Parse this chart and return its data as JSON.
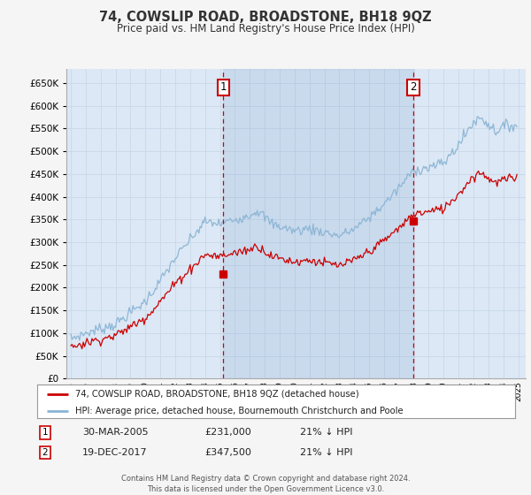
{
  "title": "74, COWSLIP ROAD, BROADSTONE, BH18 9QZ",
  "subtitle": "Price paid vs. HM Land Registry's House Price Index (HPI)",
  "legend_line1": "74, COWSLIP ROAD, BROADSTONE, BH18 9QZ (detached house)",
  "legend_line2": "HPI: Average price, detached house, Bournemouth Christchurch and Poole",
  "sale1_date": "30-MAR-2005",
  "sale1_price": "£231,000",
  "sale1_hpi": "21% ↓ HPI",
  "sale1_year": 2005.22,
  "sale1_val": 231000,
  "sale2_date": "19-DEC-2017",
  "sale2_price": "£347,500",
  "sale2_hpi": "21% ↓ HPI",
  "sale2_year": 2017.97,
  "sale2_val": 347500,
  "hpi_color": "#8ab4d4",
  "price_color": "#cc0000",
  "bg_fill_color": "#dce8f5",
  "plot_bg_color": "#ffffff",
  "grid_color": "#c8d8e8",
  "vline_color": "#cc0000",
  "fig_bg_color": "#f5f5f5",
  "footer": "Contains HM Land Registry data © Crown copyright and database right 2024.\nThis data is licensed under the Open Government Licence v3.0.",
  "ylim": [
    0,
    680000
  ],
  "ytick_vals": [
    0,
    50000,
    100000,
    150000,
    200000,
    250000,
    300000,
    350000,
    400000,
    450000,
    500000,
    550000,
    600000,
    650000
  ],
  "xmin": 1994.7,
  "xmax": 2025.5
}
